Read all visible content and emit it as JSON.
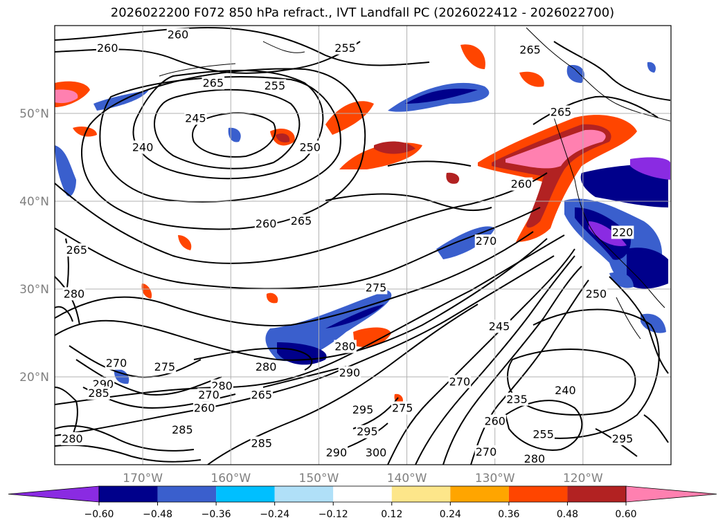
{
  "chart_data": {
    "type": "heatmap",
    "title": "2026022200 F072 850 hPa refract., IVT Landfall PC (2026022412 - 2026022700)",
    "map": {
      "lon_range": [
        -180,
        -110
      ],
      "lat_range": [
        10,
        60
      ],
      "lat_ticks": [
        "50°N",
        "40°N",
        "30°N",
        "20°N"
      ],
      "lat_values": [
        50,
        40,
        30,
        20
      ],
      "lon_ticks": [
        "170°W",
        "160°W",
        "150°W",
        "140°W",
        "130°W",
        "120°W"
      ],
      "lon_values": [
        -170,
        -160,
        -150,
        -140,
        -130,
        -120
      ],
      "grid": true
    },
    "colorbar": {
      "levels": [
        "−0.60",
        "−0.48",
        "−0.36",
        "−0.24",
        "−0.12",
        "0.12",
        "0.24",
        "0.36",
        "0.48",
        "0.60"
      ],
      "colors": [
        "#8a2be2",
        "#00008b",
        "#3a5fcd",
        "#00bfff",
        "#b0e0f8",
        "#ffffff",
        "#fde68a",
        "#ffa500",
        "#ff4500",
        "#b22222",
        "#ff80b0"
      ],
      "extend": "both"
    },
    "contour_labels": [
      {
        "text": "260",
        "lon": -166,
        "lat": 59
      },
      {
        "text": "260",
        "lon": -174,
        "lat": 57.5
      },
      {
        "text": "265",
        "lon": -162,
        "lat": 53.5
      },
      {
        "text": "255",
        "lon": -155,
        "lat": 53.2
      },
      {
        "text": "255",
        "lon": -147,
        "lat": 57.5
      },
      {
        "text": "245",
        "lon": -164,
        "lat": 49.5
      },
      {
        "text": "240",
        "lon": -170,
        "lat": 46.2
      },
      {
        "text": "250",
        "lon": -151,
        "lat": 46.2
      },
      {
        "text": "265",
        "lon": -126,
        "lat": 57.3
      },
      {
        "text": "265",
        "lon": -122.5,
        "lat": 50.2
      },
      {
        "text": "260",
        "lon": -127,
        "lat": 42
      },
      {
        "text": "260",
        "lon": -156,
        "lat": 37.5
      },
      {
        "text": "265",
        "lon": -152,
        "lat": 37.8
      },
      {
        "text": "265",
        "lon": -177.5,
        "lat": 34.5
      },
      {
        "text": "270",
        "lon": -131,
        "lat": 35.5
      },
      {
        "text": "275",
        "lon": -143.5,
        "lat": 30.2
      },
      {
        "text": "280",
        "lon": -177.8,
        "lat": 29.5
      },
      {
        "text": "280",
        "lon": -147,
        "lat": 23.5
      },
      {
        "text": "280",
        "lon": -156,
        "lat": 21.2
      },
      {
        "text": "280",
        "lon": -161,
        "lat": 19
      },
      {
        "text": "270",
        "lon": -173,
        "lat": 21.6
      },
      {
        "text": "275",
        "lon": -167.5,
        "lat": 21.2
      },
      {
        "text": "290",
        "lon": -174.5,
        "lat": 19.2
      },
      {
        "text": "285",
        "lon": -175,
        "lat": 18.2
      },
      {
        "text": "270",
        "lon": -162.5,
        "lat": 18
      },
      {
        "text": "265",
        "lon": -156.5,
        "lat": 18
      },
      {
        "text": "260",
        "lon": -163,
        "lat": 16.5
      },
      {
        "text": "290",
        "lon": -146.5,
        "lat": 20.5
      },
      {
        "text": "295",
        "lon": -145,
        "lat": 16.3
      },
      {
        "text": "285",
        "lon": -165.5,
        "lat": 14
      },
      {
        "text": "285",
        "lon": -156.5,
        "lat": 12.5
      },
      {
        "text": "280",
        "lon": -178,
        "lat": 13
      },
      {
        "text": "290",
        "lon": -148,
        "lat": 11.4
      },
      {
        "text": "295",
        "lon": -144.5,
        "lat": 13.8
      },
      {
        "text": "300",
        "lon": -143.5,
        "lat": 11.4
      },
      {
        "text": "275",
        "lon": -140.5,
        "lat": 16.5
      },
      {
        "text": "270",
        "lon": -134,
        "lat": 19.5
      },
      {
        "text": "245",
        "lon": -129.5,
        "lat": 25.8
      },
      {
        "text": "235",
        "lon": -127.5,
        "lat": 17.5
      },
      {
        "text": "240",
        "lon": -122,
        "lat": 18.5
      },
      {
        "text": "260",
        "lon": -130,
        "lat": 15
      },
      {
        "text": "255",
        "lon": -124.5,
        "lat": 13.5
      },
      {
        "text": "270",
        "lon": -131,
        "lat": 11.5
      },
      {
        "text": "280",
        "lon": -125.5,
        "lat": 10.7
      },
      {
        "text": "250",
        "lon": -118.5,
        "lat": 29.5
      },
      {
        "text": "295",
        "lon": -115.5,
        "lat": 13
      },
      {
        "text": "220",
        "lon": -115.5,
        "lat": 36.5
      }
    ]
  }
}
